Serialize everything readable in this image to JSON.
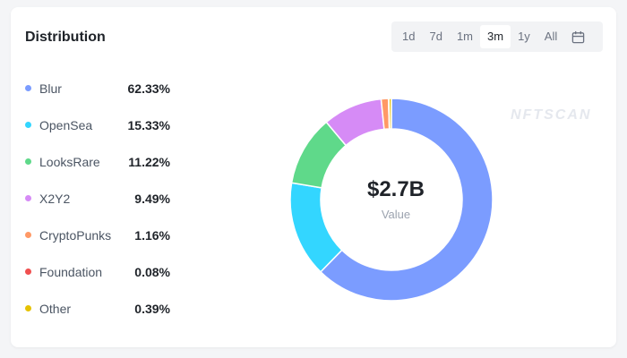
{
  "card": {
    "title": "Distribution"
  },
  "range": {
    "options": [
      "1d",
      "7d",
      "1m",
      "3m",
      "1y",
      "All"
    ],
    "selected": "3m"
  },
  "watermark": "NFTSCAN",
  "center": {
    "value": "$2.7B",
    "label": "Value"
  },
  "chart_data": {
    "type": "pie",
    "donut": true,
    "categories": [
      "Blur",
      "OpenSea",
      "LooksRare",
      "X2Y2",
      "CryptoPunks",
      "Foundation",
      "Other"
    ],
    "values": [
      62.33,
      15.33,
      11.22,
      9.49,
      1.16,
      0.08,
      0.39
    ],
    "value_labels": [
      "62.33%",
      "15.33%",
      "11.22%",
      "9.49%",
      "1.16%",
      "0.08%",
      "0.39%"
    ],
    "colors": [
      "#7b9cff",
      "#33d6ff",
      "#5fd98a",
      "#d68bf6",
      "#ff9966",
      "#f04f4f",
      "#e6c200"
    ],
    "legend": "left"
  }
}
